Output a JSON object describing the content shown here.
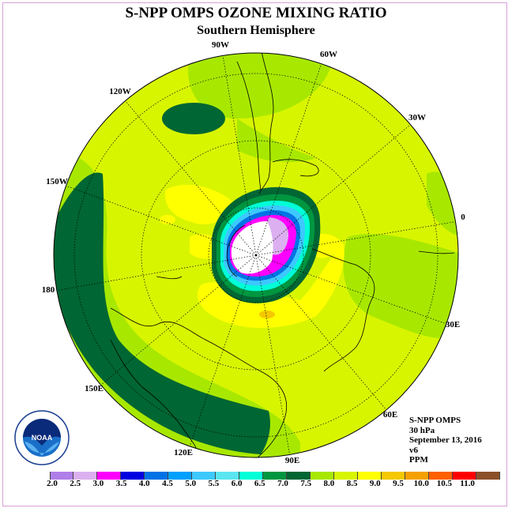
{
  "title": "S-NPP OMPS OZONE MIXING RATIO",
  "subtitle": "Southern Hemisphere",
  "longitude_labels": {
    "w90": "90W",
    "w60": "60W",
    "w30": "30W",
    "lon0": "0",
    "w120": "120W",
    "w150": "150W",
    "lon180": "180",
    "e30": "30E",
    "e60": "60E",
    "e90": "90E",
    "e120": "120E",
    "e150": "150E"
  },
  "info": {
    "instrument": "S-NPP OMPS",
    "level": "30 hPa",
    "date": "September 13, 2016",
    "version": "v6",
    "units": "PPM"
  },
  "logo": {
    "text": "NOAA",
    "ring_text": "NATIONAL OCEANIC AND ATMOSPHERIC ADMINISTRATION · U.S. DEPARTMENT OF COMMERCE"
  },
  "colorbar": {
    "labels": [
      "2.0",
      "2.5",
      "3.0",
      "3.5",
      "4.0",
      "4.5",
      "5.0",
      "5.5",
      "6.0",
      "6.5",
      "7.0",
      "7.5",
      "8.0",
      "8.5",
      "9.0",
      "9.5",
      "10.0",
      "10.5",
      "11.0"
    ],
    "colors": [
      "#b07ee8",
      "#dcb0f0",
      "#ff00ff",
      "#0000e0",
      "#0072e6",
      "#00a0ff",
      "#3dc8ff",
      "#5ae6f0",
      "#00ffd8",
      "#009640",
      "#006633",
      "#a8e800",
      "#d8f500",
      "#ffff00",
      "#f5c800",
      "#f5a000",
      "#ff6000",
      "#ff0000",
      "#8c5028"
    ]
  },
  "field_colors": {
    "hole_white": "#ffffff",
    "band_7_75": "#a8e800",
    "band_75_8": "#d8f500",
    "band_8_85": "#ffff00",
    "band_85_9": "#f5c800",
    "band_65_7": "#006633"
  }
}
